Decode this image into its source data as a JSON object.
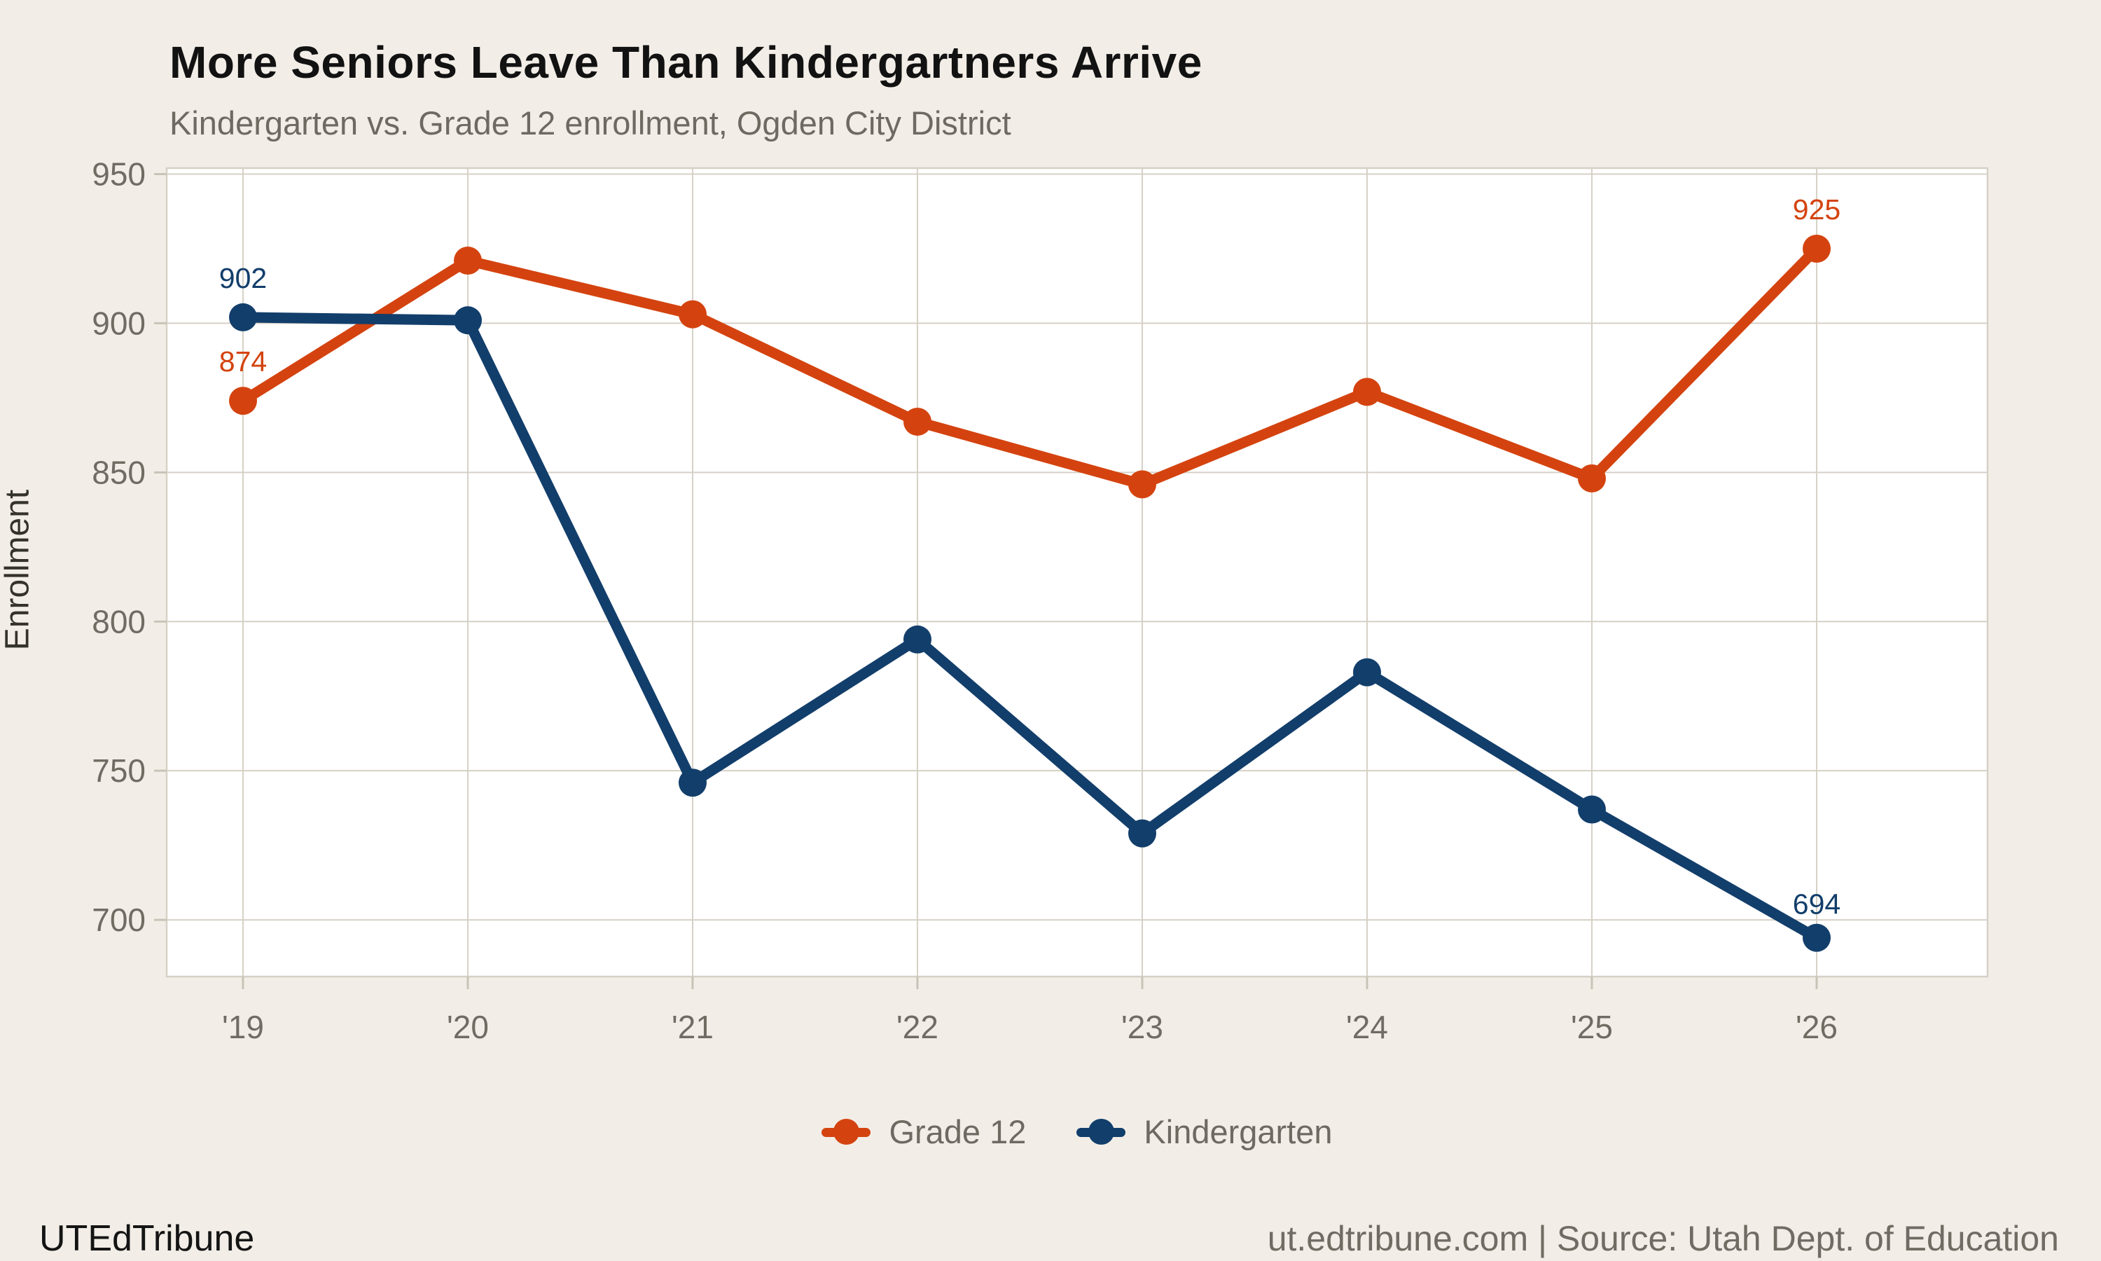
{
  "chart_data": {
    "type": "line",
    "title": "More Seniors Leave Than Kindergartners Arrive",
    "subtitle": "Kindergarten vs. Grade 12 enrollment, Ogden City District",
    "ylabel": "Enrollment",
    "xlabel": "",
    "categories": [
      "'19",
      "'20",
      "'21",
      "'22",
      "'23",
      "'24",
      "'25",
      "'26"
    ],
    "series": [
      {
        "name": "Grade 12",
        "color": "#D4430F",
        "values": [
          874,
          921,
          903,
          867,
          846,
          877,
          848,
          925
        ]
      },
      {
        "name": "Kindergarten",
        "color": "#123E6B",
        "values": [
          902,
          901,
          746,
          794,
          729,
          783,
          737,
          694
        ]
      }
    ],
    "yticks": [
      700,
      750,
      800,
      850,
      900,
      950
    ],
    "ylim": [
      681,
      952
    ],
    "grid": true,
    "legend_position": "bottom",
    "annotations": [
      {
        "series": 1,
        "point": 0,
        "text": "902",
        "dy": -42
      },
      {
        "series": 0,
        "point": 0,
        "text": "874",
        "dy": -42
      },
      {
        "series": 0,
        "point": 7,
        "text": "925",
        "dy": -42
      },
      {
        "series": 1,
        "point": 7,
        "text": "694",
        "dy": -34
      }
    ],
    "style": {
      "background": "#F2EEE7",
      "plot_background": "#FFFFFF",
      "grid_color": "#D6D1C6",
      "tick_color": "#C9C3B7",
      "axis_text_color": "#716C63"
    }
  },
  "footer": {
    "brand": "UTEdTribune",
    "source": "ut.edtribune.com | Source: Utah Dept. of Education"
  }
}
